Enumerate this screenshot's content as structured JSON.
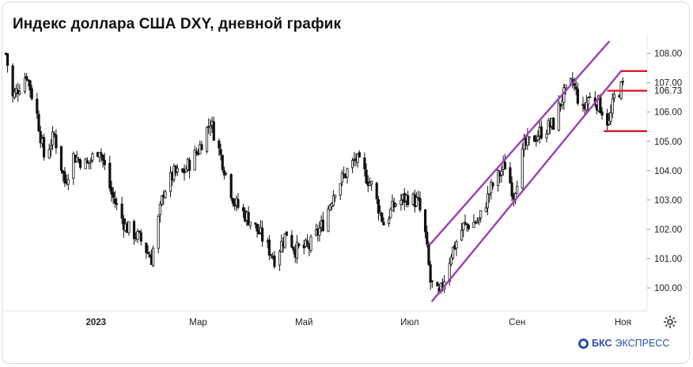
{
  "title": "Индекс доллара США DXY, дневной график",
  "brand": {
    "part1": "БКС",
    "part2": "ЭКСПРЕСС"
  },
  "colors": {
    "candles": "#111111",
    "channel": "#9b3fb5",
    "levels": "#d81b2b",
    "grid": "#e6e6e6"
  },
  "icons": {
    "settings": "gear-icon",
    "brand": "bks-logo-icon"
  },
  "chart_data": {
    "type": "candlestick",
    "title": "Индекс доллара США DXY, дневной график",
    "x_ticks": [
      {
        "date": "2023-01-01",
        "label": "2023",
        "bold": true
      },
      {
        "date": "2023-03-01",
        "label": "Мар"
      },
      {
        "date": "2023-05-01",
        "label": "Май"
      },
      {
        "date": "2023-07-01",
        "label": "Июл"
      },
      {
        "date": "2023-09-01",
        "label": "Сен"
      },
      {
        "date": "2023-11-01",
        "label": "Ноя"
      }
    ],
    "x_range": [
      "2022-11-08",
      "2023-11-15"
    ],
    "y_ticks": [
      "100.00",
      "101.00",
      "102.00",
      "103.00",
      "104.00",
      "105.00",
      "106.00",
      "107.00",
      "108.00"
    ],
    "ylim": [
      99.2,
      108.7
    ],
    "last_value": "106.73",
    "anchors": [
      [
        "2022-11-10",
        108.0
      ],
      [
        "2022-11-14",
        106.5
      ],
      [
        "2022-11-22",
        107.3
      ],
      [
        "2022-11-28",
        105.9
      ],
      [
        "2022-12-02",
        104.5
      ],
      [
        "2022-12-08",
        105.2
      ],
      [
        "2022-12-14",
        103.6
      ],
      [
        "2022-12-19",
        104.5
      ],
      [
        "2022-12-27",
        104.2
      ],
      [
        "2023-01-03",
        104.8
      ],
      [
        "2023-01-10",
        103.2
      ],
      [
        "2023-01-18",
        102.1
      ],
      [
        "2023-01-26",
        101.7
      ],
      [
        "2023-02-02",
        101.0
      ],
      [
        "2023-02-09",
        103.3
      ],
      [
        "2023-02-15",
        103.9
      ],
      [
        "2023-02-20",
        103.9
      ],
      [
        "2023-03-01",
        104.7
      ],
      [
        "2023-03-08",
        105.7
      ],
      [
        "2023-03-15",
        104.3
      ],
      [
        "2023-03-22",
        102.9
      ],
      [
        "2023-03-31",
        102.3
      ],
      [
        "2023-04-06",
        101.8
      ],
      [
        "2023-04-14",
        101.0
      ],
      [
        "2023-04-21",
        101.9
      ],
      [
        "2023-04-26",
        101.3
      ],
      [
        "2023-05-04",
        101.4
      ],
      [
        "2023-05-12",
        102.2
      ],
      [
        "2023-05-19",
        103.4
      ],
      [
        "2023-05-31",
        104.4
      ],
      [
        "2023-06-09",
        103.5
      ],
      [
        "2023-06-16",
        102.2
      ],
      [
        "2023-06-23",
        102.9
      ],
      [
        "2023-06-30",
        103.1
      ],
      [
        "2023-07-06",
        102.9
      ],
      [
        "2023-07-10",
        101.8
      ],
      [
        "2023-07-13",
        100.2
      ],
      [
        "2023-07-18",
        99.7
      ],
      [
        "2023-07-25",
        101.2
      ],
      [
        "2023-08-01",
        102.1
      ],
      [
        "2023-08-10",
        102.3
      ],
      [
        "2023-08-17",
        103.4
      ],
      [
        "2023-08-25",
        104.2
      ],
      [
        "2023-08-30",
        103.2
      ],
      [
        "2023-09-05",
        104.8
      ],
      [
        "2023-09-14",
        105.3
      ],
      [
        "2023-09-22",
        105.6
      ],
      [
        "2023-09-27",
        106.5
      ],
      [
        "2023-10-03",
        107.0
      ],
      [
        "2023-10-09",
        106.0
      ],
      [
        "2023-10-12",
        106.5
      ],
      [
        "2023-10-18",
        106.3
      ],
      [
        "2023-10-24",
        105.6
      ],
      [
        "2023-10-27",
        106.5
      ],
      [
        "2023-11-01",
        106.9
      ]
    ],
    "channel_lines": [
      {
        "from": [
          "2023-07-13",
          101.5
        ],
        "to": [
          "2023-10-24",
          108.4
        ]
      },
      {
        "from": [
          "2023-07-14",
          99.55
        ],
        "to": [
          "2023-10-31",
          107.4
        ]
      }
    ],
    "level_lines": [
      {
        "value": 107.4,
        "from": "2023-10-31",
        "to": "2023-11-15"
      },
      {
        "value": 106.73,
        "from": "2023-10-23",
        "to": "2023-11-15"
      },
      {
        "value": 105.35,
        "from": "2023-10-21",
        "to": "2023-11-15"
      }
    ]
  }
}
